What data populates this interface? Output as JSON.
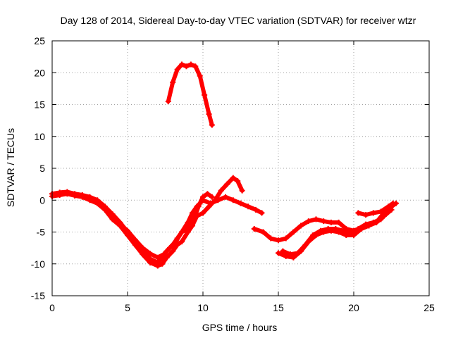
{
  "chart_data": {
    "type": "scatter",
    "title": "Day 128 of 2014, Sidereal Day-to-day VTEC variation (SDTVAR) for receiver wtzr",
    "xlabel": "GPS time / hours",
    "ylabel": "SDTVAR / TECUs",
    "xlim": [
      0,
      25
    ],
    "ylim": [
      -15,
      25
    ],
    "x_ticks": [
      0,
      5,
      10,
      15,
      20,
      25
    ],
    "y_ticks": [
      -15,
      -10,
      -5,
      0,
      5,
      10,
      15,
      20,
      25
    ],
    "grid": true,
    "marker": "+",
    "color": "#ff0000",
    "series": [
      {
        "name": "arc-1",
        "x": [
          7.7,
          8.0,
          8.3,
          8.6,
          8.9,
          9.2,
          9.5,
          9.8,
          10.1,
          10.4,
          10.6
        ],
        "y": [
          15.5,
          18.5,
          20.5,
          21.3,
          21.0,
          21.3,
          21.0,
          19.5,
          16.5,
          13.5,
          11.8
        ]
      },
      {
        "name": "arc-2",
        "x": [
          0.0,
          0.5,
          1.0,
          1.5,
          2.0,
          2.5,
          3.0,
          3.5,
          4.0,
          4.5,
          5.0,
          5.5,
          6.0,
          6.5,
          7.0,
          7.3,
          7.6,
          8.0,
          8.3,
          8.6,
          9.0,
          9.4,
          9.7,
          10.0,
          10.3,
          10.6
        ],
        "y": [
          1.0,
          1.2,
          1.3,
          1.0,
          0.8,
          0.5,
          0.0,
          -1.0,
          -2.2,
          -3.5,
          -5.0,
          -6.5,
          -8.0,
          -9.2,
          -9.8,
          -9.0,
          -8.0,
          -7.0,
          -6.0,
          -5.0,
          -4.5,
          -3.0,
          -1.0,
          0.5,
          1.0,
          0.5
        ]
      },
      {
        "name": "arc-3",
        "x": [
          0.0,
          0.5,
          1.0,
          1.5,
          2.0,
          2.5,
          3.0,
          3.5,
          4.0,
          4.5,
          5.0,
          5.5,
          6.0,
          6.5,
          7.0,
          7.3,
          7.6,
          8.0,
          8.3,
          8.6,
          9.0,
          9.3,
          9.6,
          10.0,
          10.4,
          10.8,
          11.2,
          11.6,
          12.0,
          12.3,
          12.6
        ],
        "y": [
          0.6,
          0.8,
          1.0,
          0.7,
          0.5,
          0.0,
          -0.5,
          -1.5,
          -3.0,
          -4.0,
          -5.5,
          -7.0,
          -8.5,
          -9.8,
          -10.3,
          -10.0,
          -9.0,
          -8.0,
          -7.0,
          -6.5,
          -5.0,
          -4.0,
          -2.5,
          -2.0,
          -1.0,
          0.0,
          1.5,
          2.5,
          3.5,
          3.0,
          1.5
        ]
      },
      {
        "name": "arc-4",
        "x": [
          4.0,
          4.5,
          5.0,
          5.5,
          6.0,
          6.5,
          7.0,
          7.4,
          7.8,
          8.2,
          8.6,
          9.0,
          9.3,
          9.6,
          10.0,
          10.5,
          11.0,
          11.5,
          12.0,
          12.5,
          13.0,
          13.5,
          13.9
        ],
        "y": [
          -2.8,
          -3.8,
          -4.8,
          -6.2,
          -7.5,
          -8.4,
          -9.0,
          -8.5,
          -7.5,
          -6.5,
          -5.0,
          -3.5,
          -2.0,
          -1.0,
          0.0,
          -0.5,
          0.0,
          0.5,
          0.0,
          -0.5,
          -1.0,
          -1.5,
          -2.0
        ]
      },
      {
        "name": "arc-5",
        "x": [
          13.4,
          14.0,
          14.5,
          15.0,
          15.5,
          16.0,
          16.5,
          17.0,
          17.5,
          18.0,
          18.5,
          19.0,
          19.5,
          20.0,
          20.5,
          21.0,
          21.5,
          22.0,
          22.5
        ],
        "y": [
          -4.5,
          -5.0,
          -6.0,
          -6.3,
          -6.0,
          -5.0,
          -4.0,
          -3.3,
          -3.0,
          -3.3,
          -3.5,
          -3.5,
          -4.5,
          -4.8,
          -4.5,
          -4.0,
          -3.5,
          -2.5,
          -1.5
        ]
      },
      {
        "name": "arc-6",
        "x": [
          15.0,
          15.5,
          16.0,
          16.5,
          17.0,
          17.5,
          18.0,
          18.5,
          19.0,
          19.5,
          20.0,
          20.5,
          21.0,
          21.5,
          22.0,
          22.5,
          22.8
        ],
        "y": [
          -8.3,
          -8.8,
          -9.0,
          -8.0,
          -6.5,
          -5.5,
          -5.0,
          -4.8,
          -5.0,
          -5.5,
          -5.5,
          -4.5,
          -4.0,
          -3.5,
          -2.0,
          -1.0,
          -0.5
        ]
      },
      {
        "name": "arc-7",
        "x": [
          15.3,
          15.8,
          16.3,
          16.8,
          17.3,
          17.8,
          18.3,
          18.8,
          19.3,
          19.8,
          20.3,
          20.8,
          21.3,
          21.8,
          22.3,
          22.6
        ],
        "y": [
          -8.0,
          -8.5,
          -8.3,
          -7.0,
          -5.5,
          -4.8,
          -4.5,
          -4.5,
          -4.8,
          -5.0,
          -4.5,
          -3.8,
          -3.5,
          -3.0,
          -1.5,
          -0.8
        ]
      },
      {
        "name": "arc-8",
        "x": [
          20.3,
          20.8,
          21.3,
          21.8,
          22.3,
          22.6
        ],
        "y": [
          -2.0,
          -2.3,
          -2.0,
          -1.8,
          -1.0,
          -0.5
        ]
      }
    ]
  }
}
